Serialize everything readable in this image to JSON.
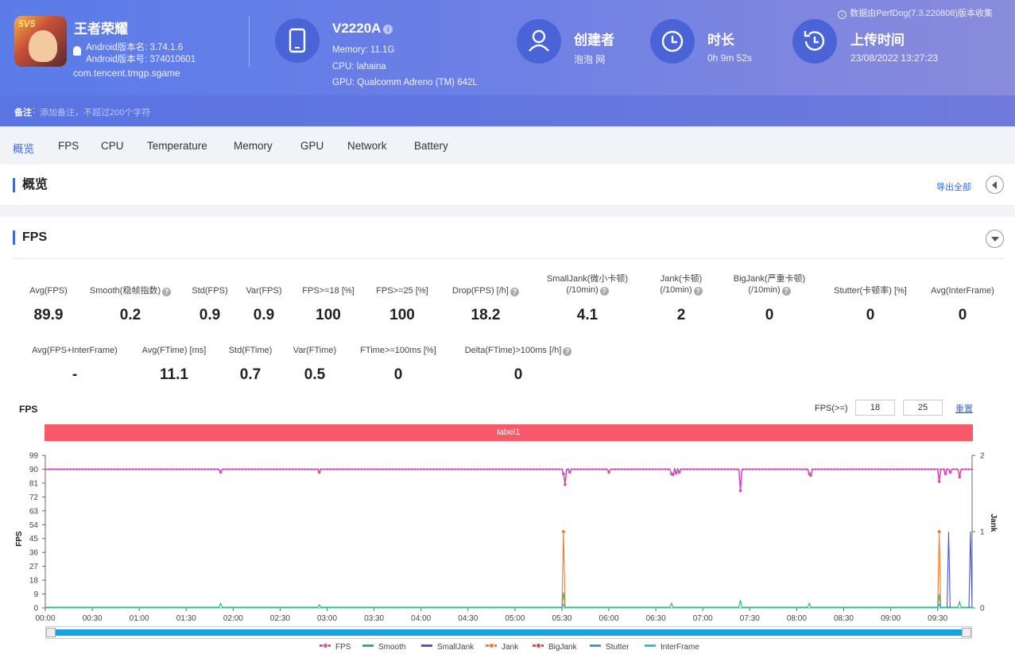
{
  "header": {
    "notice": "数据由PerfDog(7.3.220808)版本收集",
    "app": {
      "name": "王者荣耀",
      "icon_badge": "5V5",
      "version_name": "Android版本名: 3.74.1.6",
      "version_code": "Android版本号: 374010601",
      "package": "com.tencent.tmgp.sgame"
    },
    "device": {
      "model": "V2220A",
      "memory": "Memory: 11.1G",
      "cpu": "CPU: lahaina",
      "gpu": "GPU: Qualcomm Adreno (TM) 642L"
    },
    "creator": {
      "title": "创建者",
      "value": "泡泡 网"
    },
    "duration": {
      "title": "时长",
      "value": "0h 9m 52s"
    },
    "upload": {
      "title": "上传时间",
      "value": "23/08/2022 13:27:23"
    },
    "remark": {
      "label": "备注",
      "placeholder": "添加备注，不超过200个字符"
    }
  },
  "tabs": [
    {
      "label": "概览",
      "active": true
    },
    {
      "label": "FPS"
    },
    {
      "label": "CPU"
    },
    {
      "label": "Temperature"
    },
    {
      "label": "Memory"
    },
    {
      "label": "GPU"
    },
    {
      "label": "Network"
    },
    {
      "label": "Battery"
    }
  ],
  "overview": {
    "title": "概览",
    "export_label": "导出全部"
  },
  "fps_section": {
    "title": "FPS",
    "stats_row1": [
      {
        "label": "Avg(FPS)",
        "value": "89.9"
      },
      {
        "label": "Smooth(稳帧指数)",
        "value": "0.2",
        "help": true
      },
      {
        "label": "Std(FPS)",
        "value": "0.9"
      },
      {
        "label": "Var(FPS)",
        "value": "0.9"
      },
      {
        "label": "FPS>=18 [%]",
        "value": "100"
      },
      {
        "label": "FPS>=25 [%]",
        "value": "100"
      },
      {
        "label": "Drop(FPS) [/h]",
        "value": "18.2",
        "help": true
      },
      {
        "label": "SmallJank(微小卡顿)",
        "label2": "(/10min)",
        "value": "4.1",
        "help": true
      },
      {
        "label": "Jank(卡顿)",
        "label2": "(/10min)",
        "value": "2",
        "help": true
      },
      {
        "label": "BigJank(严重卡顿)",
        "label2": "(/10min)",
        "value": "0",
        "help": true
      },
      {
        "label": "Stutter(卡顿率) [%]",
        "value": "0"
      },
      {
        "label": "Avg(InterFrame)",
        "value": "0"
      }
    ],
    "stats_row2": [
      {
        "label": "Avg(FPS+InterFrame)",
        "value": "-"
      },
      {
        "label": "Avg(FTime) [ms]",
        "value": "11.1"
      },
      {
        "label": "Std(FTime)",
        "value": "0.7"
      },
      {
        "label": "Var(FTime)",
        "value": "0.5"
      },
      {
        "label": "FTime>=100ms [%]",
        "value": "0"
      },
      {
        "label": "Delta(FTime)>100ms [/h]",
        "value": "0",
        "help": true
      }
    ],
    "chart_title": "FPS",
    "filter_label": "FPS(>=)",
    "filter_min_a": "18",
    "filter_min_b": "25",
    "reset_label": "重置",
    "label_band": "label1",
    "help_glyph": "?"
  },
  "chart_data": {
    "type": "line",
    "y_left": {
      "label": "FPS",
      "min": 0,
      "max": 99,
      "ticks": [
        0,
        9,
        18,
        27,
        36,
        45,
        54,
        63,
        72,
        81,
        90,
        99
      ]
    },
    "y_right": {
      "label": "Jank",
      "min": 0,
      "max": 2,
      "ticks": [
        0,
        1,
        2
      ]
    },
    "x_ticks": [
      "00:00",
      "00:30",
      "01:00",
      "01:30",
      "02:00",
      "02:30",
      "03:00",
      "03:30",
      "04:00",
      "04:30",
      "05:00",
      "05:30",
      "06:00",
      "06:30",
      "07:00",
      "07:30",
      "08:00",
      "08:30",
      "09:00",
      "09:30"
    ],
    "x_range_sec": [
      0,
      592
    ],
    "grid": false,
    "legend_position": "bottom",
    "series": [
      {
        "name": "FPS",
        "color": "#d04fb6",
        "axis": "left",
        "baseline": 90,
        "dips": [
          [
            112,
            88
          ],
          [
            175,
            88
          ],
          [
            331,
            87
          ],
          [
            332,
            80
          ],
          [
            335,
            88
          ],
          [
            360,
            88
          ],
          [
            400,
            87
          ],
          [
            401,
            86.5
          ],
          [
            403,
            87.5
          ],
          [
            405,
            88
          ],
          [
            444,
            76
          ],
          [
            488,
            87
          ],
          [
            489,
            86
          ],
          [
            571,
            82
          ],
          [
            575,
            87
          ],
          [
            578,
            88
          ],
          [
            584,
            85
          ]
        ]
      },
      {
        "name": "Smooth",
        "color": "#2db36b",
        "axis": "left",
        "baseline": 0.5,
        "spikes": [
          [
            112,
            3
          ],
          [
            175,
            2
          ],
          [
            331,
            10
          ],
          [
            400,
            3
          ],
          [
            444,
            5
          ],
          [
            488,
            3
          ],
          [
            571,
            9
          ],
          [
            584,
            4
          ]
        ]
      },
      {
        "name": "SmallJank",
        "color": "#4b57d6",
        "axis": "right",
        "spikes": [
          [
            577,
            1
          ],
          [
            591,
            1
          ]
        ]
      },
      {
        "name": "Jank",
        "color": "#f07d2e",
        "axis": "right",
        "spikes": [
          [
            331,
            1
          ],
          [
            571,
            1
          ]
        ]
      },
      {
        "name": "BigJank",
        "color": "#e24848",
        "axis": "right",
        "spikes": []
      },
      {
        "name": "Stutter",
        "color": "#3e9ae8",
        "axis": "right",
        "spikes": [
          [
            331,
            0.05
          ],
          [
            571,
            0.05
          ]
        ]
      },
      {
        "name": "InterFrame",
        "color": "#26c6da",
        "axis": "right",
        "spikes": []
      }
    ]
  },
  "colors": {
    "accent": "#3d6cd6",
    "label_band": "#f7596a",
    "slider": "#16a3e0"
  }
}
